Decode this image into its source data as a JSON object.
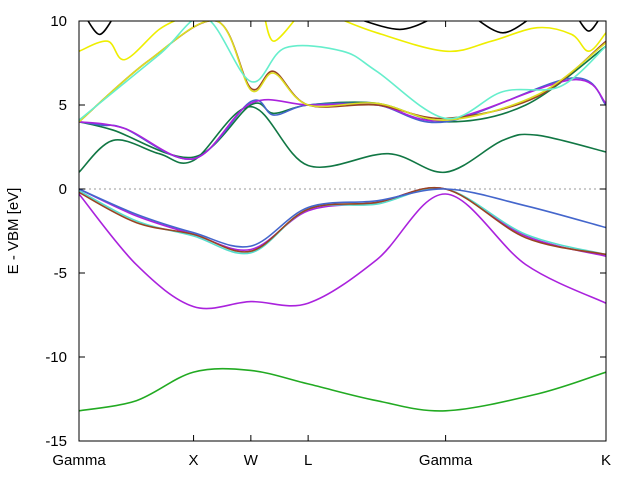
{
  "chart_data": {
    "type": "line",
    "title": "",
    "xlabel": "",
    "ylabel": "E - VBM [eV]",
    "ylim": [
      -15,
      10
    ],
    "yticks": [
      -15,
      -10,
      -5,
      0,
      5,
      10
    ],
    "grid": false,
    "legend": "none",
    "reference_line": {
      "y": 0,
      "style": "dotted",
      "color": "#999999"
    },
    "k_path": [
      {
        "label": "Gamma",
        "x": 0.0
      },
      {
        "label": "X",
        "x": 1.0
      },
      {
        "label": "W",
        "x": 1.5
      },
      {
        "label": "L",
        "x": 2.0
      },
      {
        "label": "Gamma",
        "x": 3.2
      },
      {
        "label": "K",
        "x": 4.6
      }
    ],
    "series": [
      {
        "color": "#22aa22",
        "points": [
          [
            0,
            -13.2
          ],
          [
            0.5,
            -12.6
          ],
          [
            1.0,
            -10.9
          ],
          [
            1.5,
            -10.8
          ],
          [
            2.0,
            -11.6
          ],
          [
            2.6,
            -12.6
          ],
          [
            3.2,
            -13.2
          ],
          [
            4.0,
            -12.2
          ],
          [
            4.6,
            -10.9
          ]
        ]
      },
      {
        "color": "#aa22dd",
        "points": [
          [
            0,
            -0.3
          ],
          [
            0.5,
            -4.5
          ],
          [
            1.0,
            -7.0
          ],
          [
            1.5,
            -6.7
          ],
          [
            2.0,
            -6.8
          ],
          [
            2.6,
            -4.2
          ],
          [
            3.2,
            -0.3
          ],
          [
            3.9,
            -4.5
          ],
          [
            4.6,
            -6.8
          ]
        ]
      },
      {
        "color": "#aa22dd",
        "points": [
          [
            0,
            0.0
          ],
          [
            0.5,
            -1.6
          ],
          [
            1.0,
            -2.7
          ],
          [
            1.5,
            -3.6
          ],
          [
            2.0,
            -1.3
          ],
          [
            2.6,
            -0.8
          ],
          [
            3.2,
            0.0
          ],
          [
            3.9,
            -2.8
          ],
          [
            4.6,
            -4.0
          ]
        ]
      },
      {
        "color": "#55ddcc",
        "points": [
          [
            0,
            -0.1
          ],
          [
            0.5,
            -1.9
          ],
          [
            1.0,
            -2.8
          ],
          [
            1.5,
            -3.8
          ],
          [
            2.0,
            -1.2
          ],
          [
            2.6,
            -0.9
          ],
          [
            3.2,
            0.0
          ],
          [
            3.9,
            -2.7
          ],
          [
            4.6,
            -3.9
          ]
        ]
      },
      {
        "color": "#994422",
        "points": [
          [
            0,
            -0.2
          ],
          [
            0.5,
            -2.0
          ],
          [
            1.0,
            -2.7
          ],
          [
            1.5,
            -3.7
          ],
          [
            2.0,
            -1.2
          ],
          [
            2.6,
            -0.8
          ],
          [
            3.2,
            0.0
          ],
          [
            3.9,
            -2.9
          ],
          [
            4.6,
            -3.9
          ]
        ]
      },
      {
        "color": "#4466cc",
        "points": [
          [
            0,
            0.0
          ],
          [
            0.5,
            -1.5
          ],
          [
            1.0,
            -2.6
          ],
          [
            1.5,
            -3.4
          ],
          [
            2.0,
            -1.1
          ],
          [
            2.6,
            -0.7
          ],
          [
            3.2,
            0.0
          ],
          [
            3.9,
            -1.0
          ],
          [
            4.6,
            -2.3
          ]
        ]
      },
      {
        "color": "#117744",
        "points": [
          [
            0,
            1.0
          ],
          [
            0.3,
            2.9
          ],
          [
            0.7,
            2.1
          ],
          [
            1.0,
            1.7
          ],
          [
            1.5,
            4.9
          ],
          [
            2.0,
            1.4
          ],
          [
            2.7,
            2.1
          ],
          [
            3.2,
            1.0
          ],
          [
            3.7,
            2.9
          ],
          [
            4.0,
            3.2
          ],
          [
            4.6,
            2.2
          ]
        ]
      },
      {
        "color": "#117744",
        "points": [
          [
            0,
            4.0
          ],
          [
            0.3,
            3.5
          ],
          [
            1.0,
            1.9
          ],
          [
            1.5,
            5.0
          ],
          [
            1.7,
            4.5
          ],
          [
            2.0,
            5.0
          ],
          [
            2.6,
            5.1
          ],
          [
            3.2,
            4.0
          ],
          [
            3.9,
            5.0
          ],
          [
            4.6,
            8.5
          ]
        ]
      },
      {
        "color": "#4466cc",
        "points": [
          [
            0,
            4.0
          ],
          [
            0.2,
            3.8
          ],
          [
            0.4,
            3.6
          ],
          [
            1.0,
            1.8
          ],
          [
            1.5,
            5.2
          ],
          [
            1.7,
            4.4
          ],
          [
            2.0,
            5.0
          ],
          [
            2.6,
            5.0
          ],
          [
            3.2,
            4.0
          ],
          [
            4.3,
            6.6
          ],
          [
            4.6,
            5.0
          ]
        ]
      },
      {
        "color": "#aa22dd",
        "points": [
          [
            0,
            4.0
          ],
          [
            0.4,
            3.6
          ],
          [
            1.0,
            1.8
          ],
          [
            1.5,
            5.1
          ],
          [
            2.0,
            5.0
          ],
          [
            2.6,
            5.0
          ],
          [
            3.2,
            4.1
          ],
          [
            4.3,
            6.5
          ],
          [
            4.6,
            5.1
          ]
        ]
      },
      {
        "color": "#994422",
        "points": [
          [
            0,
            4.0
          ],
          [
            0.6,
            7.6
          ],
          [
            1.2,
            10.0
          ],
          [
            1.5,
            6.0
          ],
          [
            1.7,
            7.0
          ],
          [
            2.0,
            5.0
          ],
          [
            2.6,
            5.0
          ],
          [
            3.2,
            4.2
          ],
          [
            4.0,
            5.5
          ],
          [
            4.6,
            8.8
          ]
        ]
      },
      {
        "color": "#dddd22",
        "points": [
          [
            0,
            4.0
          ],
          [
            0.6,
            7.6
          ],
          [
            1.2,
            10.0
          ],
          [
            1.5,
            5.9
          ],
          [
            1.7,
            6.9
          ],
          [
            2.0,
            5.0
          ],
          [
            2.6,
            5.1
          ],
          [
            3.2,
            4.1
          ],
          [
            4.0,
            5.6
          ],
          [
            4.6,
            8.7
          ]
        ]
      },
      {
        "color": "#66eecc",
        "points": [
          [
            0,
            4.1
          ],
          [
            0.7,
            8.0
          ],
          [
            1.1,
            10.2
          ],
          [
            1.5,
            6.4
          ],
          [
            1.8,
            8.4
          ],
          [
            2.3,
            8.2
          ],
          [
            2.6,
            7.0
          ],
          [
            3.2,
            4.2
          ],
          [
            3.7,
            5.8
          ],
          [
            4.2,
            6.1
          ],
          [
            4.6,
            8.5
          ]
        ]
      },
      {
        "color": "#eeee00",
        "points": [
          [
            0,
            8.2
          ],
          [
            0.25,
            8.8
          ],
          [
            0.4,
            7.7
          ],
          [
            0.7,
            9.5
          ],
          [
            0.9,
            10.2
          ]
        ]
      },
      {
        "color": "#eeee00",
        "points": [
          [
            1.62,
            10.2
          ],
          [
            1.7,
            8.8
          ],
          [
            1.9,
            10.2
          ]
        ]
      },
      {
        "color": "#eeee00",
        "points": [
          [
            2.25,
            10.2
          ],
          [
            2.6,
            9.3
          ],
          [
            3.2,
            8.2
          ],
          [
            3.6,
            8.8
          ],
          [
            4.0,
            9.6
          ],
          [
            4.3,
            9.2
          ],
          [
            4.45,
            8.2
          ],
          [
            4.6,
            9.3
          ]
        ]
      },
      {
        "color": "#000000",
        "points": [
          [
            0.06,
            10.2
          ],
          [
            0.18,
            9.2
          ],
          [
            0.3,
            10.2
          ]
        ]
      },
      {
        "color": "#000000",
        "points": [
          [
            2.4,
            10.2
          ],
          [
            2.8,
            9.5
          ],
          [
            3.1,
            10.2
          ]
        ]
      },
      {
        "color": "#000000",
        "points": [
          [
            3.45,
            10.2
          ],
          [
            3.7,
            9.3
          ],
          [
            3.95,
            10.2
          ]
        ]
      },
      {
        "color": "#000000",
        "points": [
          [
            4.35,
            10.2
          ],
          [
            4.45,
            9.4
          ],
          [
            4.55,
            10.2
          ]
        ]
      }
    ]
  }
}
